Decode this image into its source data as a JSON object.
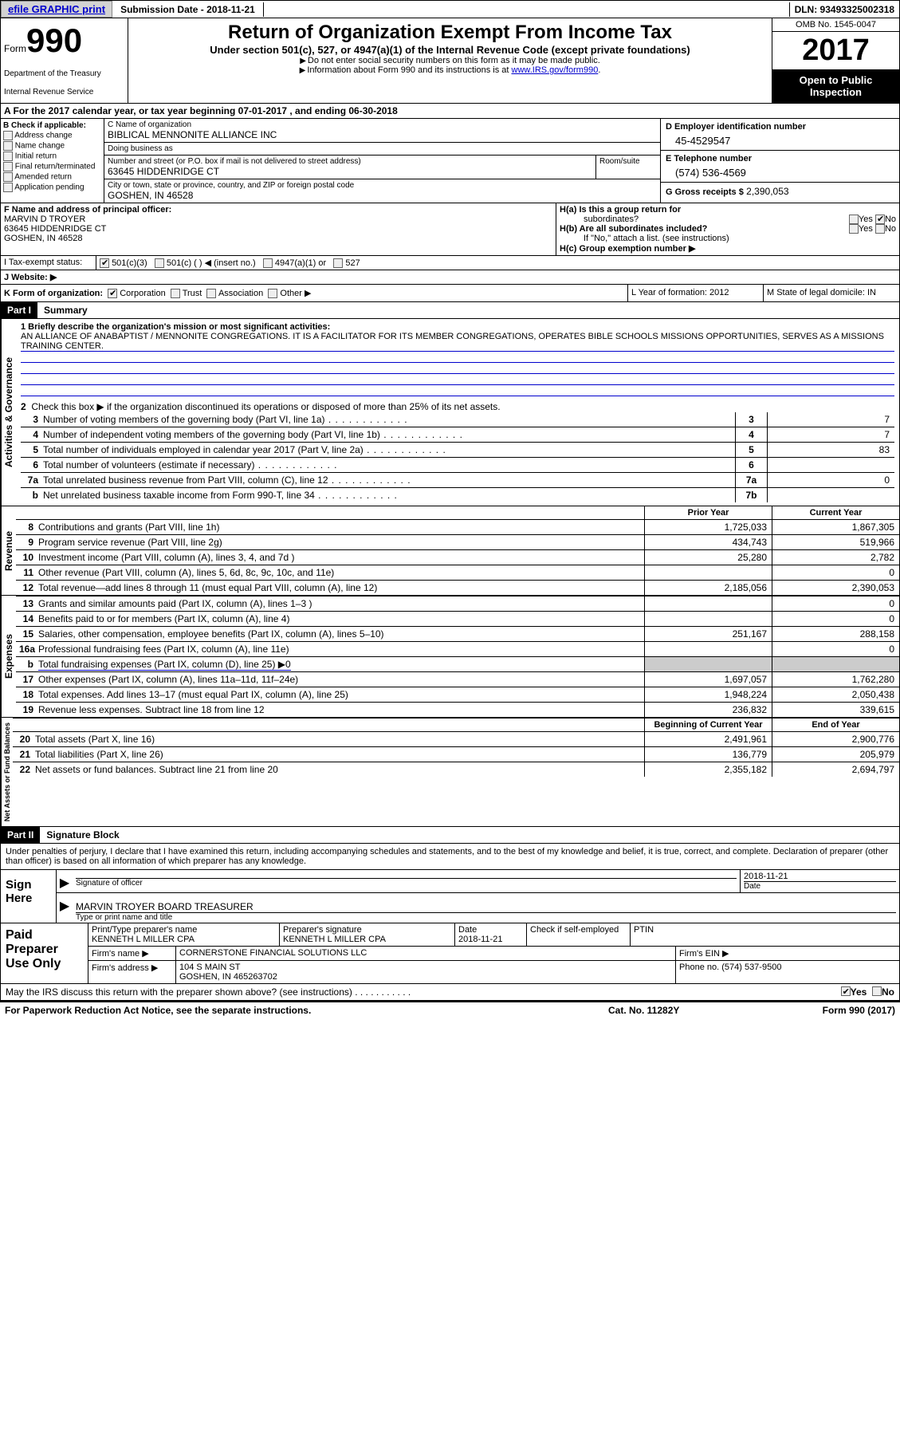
{
  "topbar": {
    "efile_link": "efile GRAPHIC print",
    "submission_label": "Submission Date - 2018-11-21",
    "dln": "DLN: 93493325002318"
  },
  "header": {
    "form_word": "Form",
    "form_number": "990",
    "dept1": "Department of the Treasury",
    "dept2": "Internal Revenue Service",
    "title": "Return of Organization Exempt From Income Tax",
    "subtitle": "Under section 501(c), 527, or 4947(a)(1) of the Internal Revenue Code (except private foundations)",
    "arrow1": "Do not enter social security numbers on this form as it may be made public.",
    "arrow2_pre": "Information about Form 990 and its instructions is at ",
    "arrow2_link": "www.IRS.gov/form990",
    "omb": "OMB No. 1545-0047",
    "year": "2017",
    "opi1": "Open to Public",
    "opi2": "Inspection"
  },
  "sectionA": "A  For the 2017 calendar year, or tax year beginning 07-01-2017   , and ending 06-30-2018",
  "B": {
    "title": "B Check if applicable:",
    "opts": [
      "Address change",
      "Name change",
      "Initial return",
      "Final return/terminated",
      "Amended return",
      "Application pending"
    ]
  },
  "C": {
    "name_lbl": "C Name of organization",
    "name": "BIBLICAL MENNONITE ALLIANCE INC",
    "dba_lbl": "Doing business as",
    "dba": "",
    "addr_lbl": "Number and street (or P.O. box if mail is not delivered to street address)",
    "room_lbl": "Room/suite",
    "addr": "63645 HIDDENRIDGE CT",
    "city_lbl": "City or town, state or province, country, and ZIP or foreign postal code",
    "city": "GOSHEN, IN  46528"
  },
  "D": {
    "ein_lbl": "D Employer identification number",
    "ein": "45-4529547",
    "tel_lbl": "E Telephone number",
    "tel": "(574) 536-4569",
    "gross_lbl": "G Gross receipts $",
    "gross": "2,390,053"
  },
  "F": {
    "lbl": "F Name and address of principal officer:",
    "name": "MARVIN D TROYER",
    "addr1": "63645 HIDDENRIDGE CT",
    "addr2": "GOSHEN, IN  46528"
  },
  "H": {
    "a": "H(a)  Is this a group return for",
    "a2": "subordinates?",
    "b": "H(b) Are all subordinates included?",
    "b2": "If \"No,\" attach a list. (see instructions)",
    "c": "H(c)  Group exemption number ▶",
    "yes": "Yes",
    "no": "No"
  },
  "I": {
    "lbl": "I  Tax-exempt status:",
    "o1": "501(c)(3)",
    "o2": "501(c) (  ) ◀ (insert no.)",
    "o3": "4947(a)(1) or",
    "o4": "527"
  },
  "J": {
    "lbl": "J  Website: ▶"
  },
  "K": {
    "text": "K Form of organization:",
    "o1": "Corporation",
    "o2": "Trust",
    "o3": "Association",
    "o4": "Other ▶"
  },
  "L": "L Year of formation: 2012",
  "M": "M State of legal domicile: IN",
  "part1": {
    "hdr": "Part I",
    "title": "Summary",
    "vtab": "Activities & Governance",
    "mission_lbl": "1  Briefly describe the organization's mission or most significant activities:",
    "mission": "AN ALLIANCE OF ANABAPTIST / MENNONITE CONGREGATIONS. IT IS A FACILITATOR FOR ITS MEMBER CONGREGATIONS, OPERATES BIBLE SCHOOLS MISSIONS OPPORTUNITIES, SERVES AS A MISSIONS TRAINING CENTER.",
    "line2": "Check this box ▶    if the organization discontinued its operations or disposed of more than 25% of its net assets.",
    "lines": [
      {
        "n": "3",
        "txt": "Number of voting members of the governing body (Part VI, line 1a)",
        "box": "3",
        "val": "7"
      },
      {
        "n": "4",
        "txt": "Number of independent voting members of the governing body (Part VI, line 1b)",
        "box": "4",
        "val": "7"
      },
      {
        "n": "5",
        "txt": "Total number of individuals employed in calendar year 2017 (Part V, line 2a)",
        "box": "5",
        "val": "83"
      },
      {
        "n": "6",
        "txt": "Total number of volunteers (estimate if necessary)",
        "box": "6",
        "val": ""
      },
      {
        "n": "7a",
        "txt": "Total unrelated business revenue from Part VIII, column (C), line 12",
        "box": "7a",
        "val": "0"
      },
      {
        "n": "b",
        "txt": "Net unrelated business taxable income from Form 990-T, line 34",
        "box": "7b",
        "val": ""
      }
    ]
  },
  "cols": {
    "py": "Prior Year",
    "cy": "Current Year",
    "beg": "Beginning of Current Year",
    "end": "End of Year"
  },
  "revenue": {
    "vtab": "Revenue",
    "rows": [
      {
        "n": "8",
        "txt": "Contributions and grants (Part VIII, line 1h)",
        "py": "1,725,033",
        "cy": "1,867,305"
      },
      {
        "n": "9",
        "txt": "Program service revenue (Part VIII, line 2g)",
        "py": "434,743",
        "cy": "519,966"
      },
      {
        "n": "10",
        "txt": "Investment income (Part VIII, column (A), lines 3, 4, and 7d )",
        "py": "25,280",
        "cy": "2,782"
      },
      {
        "n": "11",
        "txt": "Other revenue (Part VIII, column (A), lines 5, 6d, 8c, 9c, 10c, and 11e)",
        "py": "",
        "cy": "0"
      },
      {
        "n": "12",
        "txt": "Total revenue—add lines 8 through 11 (must equal Part VIII, column (A), line 12)",
        "py": "2,185,056",
        "cy": "2,390,053"
      }
    ]
  },
  "expenses": {
    "vtab": "Expenses",
    "rows": [
      {
        "n": "13",
        "txt": "Grants and similar amounts paid (Part IX, column (A), lines 1–3 )",
        "py": "",
        "cy": "0"
      },
      {
        "n": "14",
        "txt": "Benefits paid to or for members (Part IX, column (A), line 4)",
        "py": "",
        "cy": "0"
      },
      {
        "n": "15",
        "txt": "Salaries, other compensation, employee benefits (Part IX, column (A), lines 5–10)",
        "py": "251,167",
        "cy": "288,158"
      },
      {
        "n": "16a",
        "txt": "Professional fundraising fees (Part IX, column (A), line 11e)",
        "py": "",
        "cy": "0"
      },
      {
        "n": "b",
        "txt": "Total fundraising expenses (Part IX, column (D), line 25) ▶0",
        "py": "SHADE",
        "cy": "SHADE"
      },
      {
        "n": "17",
        "txt": "Other expenses (Part IX, column (A), lines 11a–11d, 11f–24e)",
        "py": "1,697,057",
        "cy": "1,762,280"
      },
      {
        "n": "18",
        "txt": "Total expenses. Add lines 13–17 (must equal Part IX, column (A), line 25)",
        "py": "1,948,224",
        "cy": "2,050,438"
      },
      {
        "n": "19",
        "txt": "Revenue less expenses. Subtract line 18 from line 12",
        "py": "236,832",
        "cy": "339,615"
      }
    ]
  },
  "netassets": {
    "vtab": "Net Assets or Fund Balances",
    "rows": [
      {
        "n": "20",
        "txt": "Total assets (Part X, line 16)",
        "py": "2,491,961",
        "cy": "2,900,776"
      },
      {
        "n": "21",
        "txt": "Total liabilities (Part X, line 26)",
        "py": "136,779",
        "cy": "205,979"
      },
      {
        "n": "22",
        "txt": "Net assets or fund balances. Subtract line 21 from line 20",
        "py": "2,355,182",
        "cy": "2,694,797"
      }
    ]
  },
  "part2": {
    "hdr": "Part II",
    "title": "Signature Block",
    "intro": "Under penalties of perjury, I declare that I have examined this return, including accompanying schedules and statements, and to the best of my knowledge and belief, it is true, correct, and complete. Declaration of preparer (other than officer) is based on all information of which preparer has any knowledge."
  },
  "sign": {
    "left": "Sign Here",
    "sig_cap": "Signature of officer",
    "date": "2018-11-21",
    "date_cap": "Date",
    "name": "MARVIN TROYER  BOARD TREASURER",
    "name_cap": "Type or print name and title"
  },
  "prep": {
    "left": "Paid Preparer Use Only",
    "r1": {
      "c1_lbl": "Print/Type preparer's name",
      "c1": "KENNETH L MILLER CPA",
      "c2_lbl": "Preparer's signature",
      "c2": "KENNETH L MILLER CPA",
      "c3_lbl": "Date",
      "c3": "2018-11-21",
      "c4": "Check     if self-employed",
      "c5": "PTIN"
    },
    "r2": {
      "lbl": "Firm's name     ▶",
      "val": "CORNERSTONE FINANCIAL SOLUTIONS LLC",
      "ein": "Firm's EIN ▶"
    },
    "r3": {
      "lbl": "Firm's address ▶",
      "val": "104 S MAIN ST",
      "val2": "GOSHEN, IN  465263702",
      "ph": "Phone no. (574) 537-9500"
    }
  },
  "discuss": {
    "txt": "May the IRS discuss this return with the preparer shown above? (see instructions)",
    "y": "Yes",
    "n": "No"
  },
  "footer": {
    "l": "For Paperwork Reduction Act Notice, see the separate instructions.",
    "m": "Cat. No. 11282Y",
    "r": "Form 990 (2017)"
  }
}
